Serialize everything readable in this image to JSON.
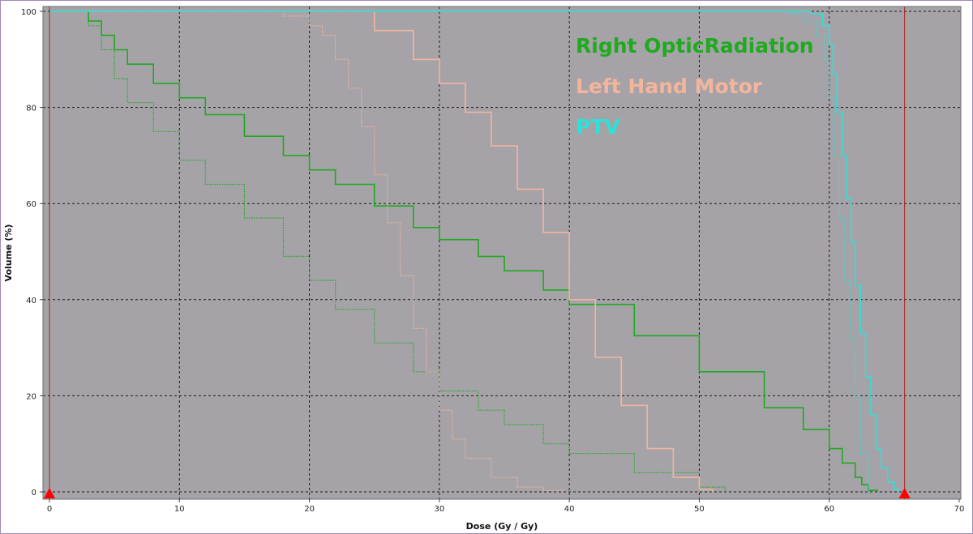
{
  "chart_data": {
    "type": "line",
    "title": "",
    "xlabel": "Dose (Gy / Gy)",
    "ylabel": "Volume (%)",
    "xlim": [
      0,
      70
    ],
    "ylim": [
      0,
      100
    ],
    "xticks": [
      "0",
      "10",
      "20",
      "30",
      "40",
      "50",
      "60",
      "70"
    ],
    "yticks": [
      "0",
      "20",
      "40",
      "60",
      "80",
      "100"
    ],
    "grid": true,
    "legend_position": "top-center-right",
    "background_color": "#a5a3a8",
    "markers": [
      {
        "x": 0,
        "color": "#ff0000"
      },
      {
        "x": 65.8,
        "color": "#ff0000"
      }
    ],
    "series": [
      {
        "name": "Right OpticRadiation",
        "color": "#1faa1f",
        "style": "solid",
        "x": [
          0,
          2,
          3,
          4,
          5,
          6,
          8,
          10,
          12,
          15,
          18,
          20,
          22,
          25,
          28,
          30,
          33,
          35,
          38,
          40,
          45,
          50,
          55,
          58,
          60,
          61,
          62,
          62.5,
          63,
          63.7
        ],
        "y": [
          100,
          100,
          98,
          95,
          92,
          89,
          85,
          82,
          78.5,
          74,
          70,
          67,
          64,
          59.5,
          55,
          52.5,
          49,
          46,
          42,
          39,
          32.5,
          25,
          17.5,
          13,
          9,
          6,
          3,
          1.5,
          0.3,
          0
        ]
      },
      {
        "name": "Right OpticRadiation (dotted)",
        "color": "#1faa1f",
        "style": "dotted",
        "x": [
          0,
          2,
          3,
          4,
          5,
          6,
          8,
          10,
          12,
          15,
          18,
          20,
          22,
          25,
          28,
          30,
          33,
          35,
          38,
          40,
          45,
          50,
          52
        ],
        "y": [
          100,
          100,
          97,
          92,
          86,
          81,
          75,
          69,
          64,
          57,
          49,
          44,
          38,
          31,
          25,
          21,
          17,
          14,
          10,
          8,
          4,
          1,
          0
        ]
      },
      {
        "name": "Left Hand Motor",
        "color": "#f5b49c",
        "style": "solid",
        "x": [
          0,
          22,
          25,
          28,
          30,
          32,
          34,
          36,
          38,
          40,
          42,
          44,
          46,
          48,
          50,
          51
        ],
        "y": [
          100,
          100,
          96,
          90,
          85,
          79,
          72,
          63,
          54,
          40,
          28,
          18,
          9,
          3,
          0.5,
          0
        ]
      },
      {
        "name": "Left Hand Motor (dotted)",
        "color": "#f5b49c",
        "style": "dotted",
        "x": [
          0,
          16,
          18,
          20,
          21,
          22,
          23,
          24,
          25,
          26,
          27,
          28,
          29,
          30,
          31,
          32,
          34,
          36,
          38,
          39.5
        ],
        "y": [
          100,
          100,
          99,
          97,
          95,
          90,
          84,
          76,
          66,
          56,
          45,
          34,
          25,
          17,
          11,
          7,
          3,
          1,
          0.3,
          0
        ]
      },
      {
        "name": "PTV",
        "color": "#2fe0d6",
        "style": "solid",
        "x": [
          0,
          57.5,
          58.5,
          59.5,
          60,
          60.3,
          60.6,
          61,
          61.3,
          61.7,
          62,
          62.4,
          62.8,
          63.2,
          63.6,
          64,
          64.5,
          65,
          65.3
        ],
        "y": [
          100,
          100,
          99.5,
          97,
          93,
          87,
          79,
          70,
          61,
          52,
          43,
          33,
          24,
          16,
          9,
          5,
          2,
          0.5,
          0
        ]
      },
      {
        "name": "PTV (dotted)",
        "color": "#2fe0d6",
        "style": "dotted",
        "x": [
          0,
          56,
          57,
          58,
          59,
          59.6,
          60,
          60.4,
          60.8,
          61.2,
          61.6,
          62,
          62.4,
          63
        ],
        "y": [
          100,
          100,
          99.5,
          98,
          95,
          90,
          82,
          70,
          57,
          44,
          32,
          20,
          8,
          0
        ]
      }
    ]
  },
  "legend": {
    "items": [
      {
        "label": "Right OpticRadiation",
        "color": "#1faa1f"
      },
      {
        "label": "Left Hand Motor",
        "color": "#f5b49c"
      },
      {
        "label": "PTV",
        "color": "#2fe0d6"
      }
    ]
  }
}
